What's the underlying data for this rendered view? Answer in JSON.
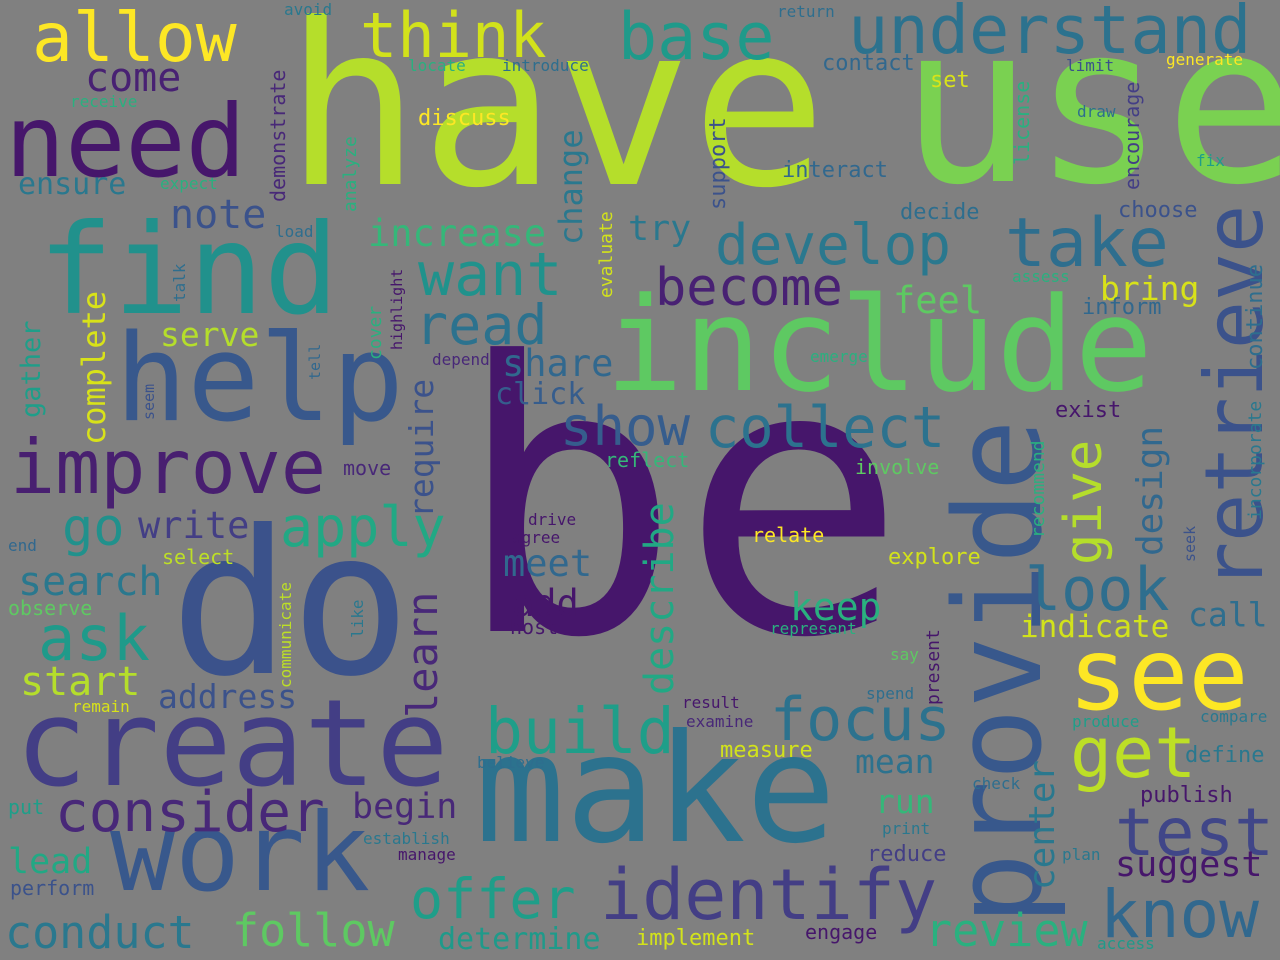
{
  "background": "#808080",
  "palette": {
    "purple": "#46166b",
    "indigo": "#433e85",
    "blue": "#38588c",
    "steel": "#2e6e8e",
    "teal": "#21918c",
    "green": "#2ab07f",
    "lime": "#5ec962",
    "lightgreen": "#7ad151",
    "yellowgreen": "#b5de2b",
    "yellow": "#fde725"
  },
  "words": [
    {
      "text": "be"
    },
    {
      "text": "have"
    },
    {
      "text": "use"
    },
    {
      "text": "do"
    },
    {
      "text": "make"
    },
    {
      "text": "include"
    },
    {
      "text": "provide"
    },
    {
      "text": "find"
    },
    {
      "text": "create"
    },
    {
      "text": "help"
    },
    {
      "text": "need"
    },
    {
      "text": "work"
    },
    {
      "text": "see"
    },
    {
      "text": "improve"
    },
    {
      "text": "retrieve"
    },
    {
      "text": "understand"
    },
    {
      "text": "allow"
    },
    {
      "text": "take"
    },
    {
      "text": "identify"
    },
    {
      "text": "develop"
    },
    {
      "text": "want"
    },
    {
      "text": "collect"
    },
    {
      "text": "get"
    },
    {
      "text": "test"
    },
    {
      "text": "know"
    },
    {
      "text": "look"
    },
    {
      "text": "think"
    },
    {
      "text": "base"
    },
    {
      "text": "consider"
    },
    {
      "text": "focus"
    },
    {
      "text": "build"
    },
    {
      "text": "read"
    },
    {
      "text": "become"
    },
    {
      "text": "show"
    },
    {
      "text": "apply"
    },
    {
      "text": "offer"
    },
    {
      "text": "ask"
    },
    {
      "text": "give"
    },
    {
      "text": "describe"
    },
    {
      "text": "learn"
    },
    {
      "text": "follow"
    },
    {
      "text": "conduct"
    },
    {
      "text": "review"
    },
    {
      "text": "go"
    },
    {
      "text": "note"
    },
    {
      "text": "increase"
    },
    {
      "text": "share"
    },
    {
      "text": "search"
    },
    {
      "text": "start"
    },
    {
      "text": "come"
    },
    {
      "text": "design"
    },
    {
      "text": "center"
    },
    {
      "text": "complete"
    },
    {
      "text": "feel"
    },
    {
      "text": "meet"
    },
    {
      "text": "write"
    },
    {
      "text": "suggest"
    },
    {
      "text": "keep"
    },
    {
      "text": "add"
    },
    {
      "text": "require"
    },
    {
      "text": "change"
    },
    {
      "text": "begin"
    },
    {
      "text": "serve"
    },
    {
      "text": "address"
    },
    {
      "text": "indicate"
    },
    {
      "text": "bring"
    },
    {
      "text": "mean"
    },
    {
      "text": "call"
    },
    {
      "text": "lead"
    },
    {
      "text": "click"
    },
    {
      "text": "try"
    },
    {
      "text": "run"
    },
    {
      "text": "ensure"
    },
    {
      "text": "determine"
    },
    {
      "text": "gather"
    },
    {
      "text": "continue"
    },
    {
      "text": "discuss"
    },
    {
      "text": "interact"
    },
    {
      "text": "contact"
    },
    {
      "text": "support"
    },
    {
      "text": "decide"
    },
    {
      "text": "choose"
    },
    {
      "text": "inform"
    },
    {
      "text": "exist"
    },
    {
      "text": "explore"
    },
    {
      "text": "measure"
    },
    {
      "text": "publish"
    },
    {
      "text": "implement"
    },
    {
      "text": "reduce"
    },
    {
      "text": "perform"
    },
    {
      "text": "engage"
    },
    {
      "text": "relate"
    },
    {
      "text": "involve"
    },
    {
      "text": "reflect"
    },
    {
      "text": "select"
    },
    {
      "text": "observe"
    },
    {
      "text": "set"
    },
    {
      "text": "encourage"
    },
    {
      "text": "license"
    },
    {
      "text": "incorporate"
    },
    {
      "text": "recommend"
    },
    {
      "text": "demonstrate"
    },
    {
      "text": "evaluate"
    },
    {
      "text": "cover"
    },
    {
      "text": "analyze"
    },
    {
      "text": "present"
    },
    {
      "text": "introduce"
    },
    {
      "text": "locate"
    },
    {
      "text": "limit"
    },
    {
      "text": "generate"
    },
    {
      "text": "return"
    },
    {
      "text": "avoid"
    },
    {
      "text": "receive"
    },
    {
      "text": "expect"
    },
    {
      "text": "load"
    },
    {
      "text": "talk"
    },
    {
      "text": "highlight"
    },
    {
      "text": "depend"
    },
    {
      "text": "tell"
    },
    {
      "text": "seem"
    },
    {
      "text": "move"
    },
    {
      "text": "drive"
    },
    {
      "text": "agree"
    },
    {
      "text": "host"
    },
    {
      "text": "end"
    },
    {
      "text": "communicate"
    },
    {
      "text": "like"
    },
    {
      "text": "represent"
    },
    {
      "text": "say"
    },
    {
      "text": "spend"
    },
    {
      "text": "result"
    },
    {
      "text": "examine"
    },
    {
      "text": "remain"
    },
    {
      "text": "believe"
    },
    {
      "text": "establish"
    },
    {
      "text": "manage"
    },
    {
      "text": "print"
    },
    {
      "text": "plan"
    },
    {
      "text": "check"
    },
    {
      "text": "put"
    },
    {
      "text": "access"
    },
    {
      "text": "compare"
    },
    {
      "text": "define"
    },
    {
      "text": "produce"
    },
    {
      "text": "emerge"
    },
    {
      "text": "assess"
    },
    {
      "text": "fix"
    },
    {
      "text": "draw"
    },
    {
      "text": "seek"
    }
  ]
}
